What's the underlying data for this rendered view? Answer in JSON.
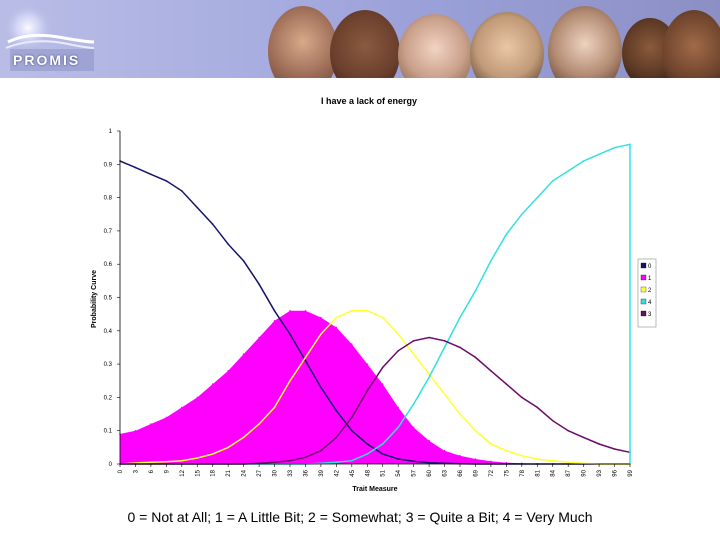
{
  "header": {
    "logo_text": "PROMIS"
  },
  "caption": "0 = Not at All; 1 = A Little Bit; 2 = Somewhat; 3 = Quite a Bit; 4 = Very Much",
  "chart_data": {
    "type": "line",
    "title": "I have a lack of energy",
    "xlabel": "Trait Measure",
    "ylabel": "Probability Curve",
    "ylim": [
      0,
      1
    ],
    "xlim": [
      0,
      99
    ],
    "yticks": [
      "0",
      "0.1",
      "0.2",
      "0.3",
      "0.4",
      "0.5",
      "0.6",
      "0.7",
      "0.8",
      "0.9",
      "1"
    ],
    "xticks": [
      "0",
      "3",
      "6",
      "9",
      "12",
      "15",
      "18",
      "21",
      "24",
      "27",
      "30",
      "33",
      "36",
      "39",
      "42",
      "45",
      "48",
      "51",
      "54",
      "57",
      "60",
      "63",
      "66",
      "69",
      "72",
      "75",
      "78",
      "81",
      "84",
      "87",
      "90",
      "93",
      "96",
      "99"
    ],
    "x": [
      0,
      3,
      6,
      9,
      12,
      15,
      18,
      21,
      24,
      27,
      30,
      33,
      36,
      39,
      42,
      45,
      48,
      51,
      54,
      57,
      60,
      63,
      66,
      69,
      72,
      75,
      78,
      81,
      84,
      87,
      90,
      93,
      96,
      99
    ],
    "series": [
      {
        "name": "0",
        "color": "#14146e",
        "fill": false,
        "values": [
          0.91,
          0.89,
          0.87,
          0.85,
          0.82,
          0.77,
          0.72,
          0.66,
          0.61,
          0.54,
          0.46,
          0.39,
          0.31,
          0.23,
          0.16,
          0.1,
          0.06,
          0.03,
          0.015,
          0.008,
          0.004,
          0.002,
          0.001,
          0,
          0,
          0,
          0,
          0,
          0,
          0,
          0,
          0,
          0,
          0
        ]
      },
      {
        "name": "1",
        "color": "#ff00ff",
        "fill": true,
        "values": [
          0.09,
          0.1,
          0.12,
          0.14,
          0.17,
          0.2,
          0.24,
          0.28,
          0.33,
          0.38,
          0.43,
          0.46,
          0.46,
          0.44,
          0.41,
          0.36,
          0.3,
          0.24,
          0.17,
          0.11,
          0.07,
          0.04,
          0.025,
          0.015,
          0.008,
          0.004,
          0.002,
          0.001,
          0,
          0,
          0,
          0,
          0,
          0
        ]
      },
      {
        "name": "2",
        "color": "#ffff33",
        "fill": false,
        "values": [
          0,
          0.003,
          0.005,
          0.007,
          0.01,
          0.018,
          0.03,
          0.05,
          0.08,
          0.12,
          0.17,
          0.25,
          0.32,
          0.39,
          0.44,
          0.46,
          0.46,
          0.44,
          0.39,
          0.33,
          0.27,
          0.21,
          0.15,
          0.1,
          0.06,
          0.04,
          0.025,
          0.015,
          0.01,
          0.005,
          0.002,
          0,
          0,
          0
        ]
      },
      {
        "name": "4",
        "color": "#33e0e0",
        "fill": false,
        "values": [
          0,
          0,
          0,
          0,
          0,
          0,
          0,
          0,
          0,
          0,
          0,
          0,
          0,
          0.002,
          0.005,
          0.01,
          0.03,
          0.06,
          0.11,
          0.18,
          0.26,
          0.35,
          0.44,
          0.52,
          0.61,
          0.69,
          0.75,
          0.8,
          0.85,
          0.88,
          0.91,
          0.93,
          0.95,
          0.96
        ]
      },
      {
        "name": "3",
        "color": "#6a0a6a",
        "fill": false,
        "values": [
          0,
          0,
          0,
          0,
          0,
          0,
          0,
          0,
          0,
          0.002,
          0.005,
          0.01,
          0.02,
          0.04,
          0.08,
          0.14,
          0.22,
          0.29,
          0.34,
          0.37,
          0.38,
          0.37,
          0.35,
          0.32,
          0.28,
          0.24,
          0.2,
          0.17,
          0.13,
          0.1,
          0.08,
          0.06,
          0.045,
          0.035
        ]
      }
    ],
    "legend": {
      "placement": "right",
      "entries": [
        "0",
        "1",
        "2",
        "4",
        "3"
      ]
    }
  }
}
